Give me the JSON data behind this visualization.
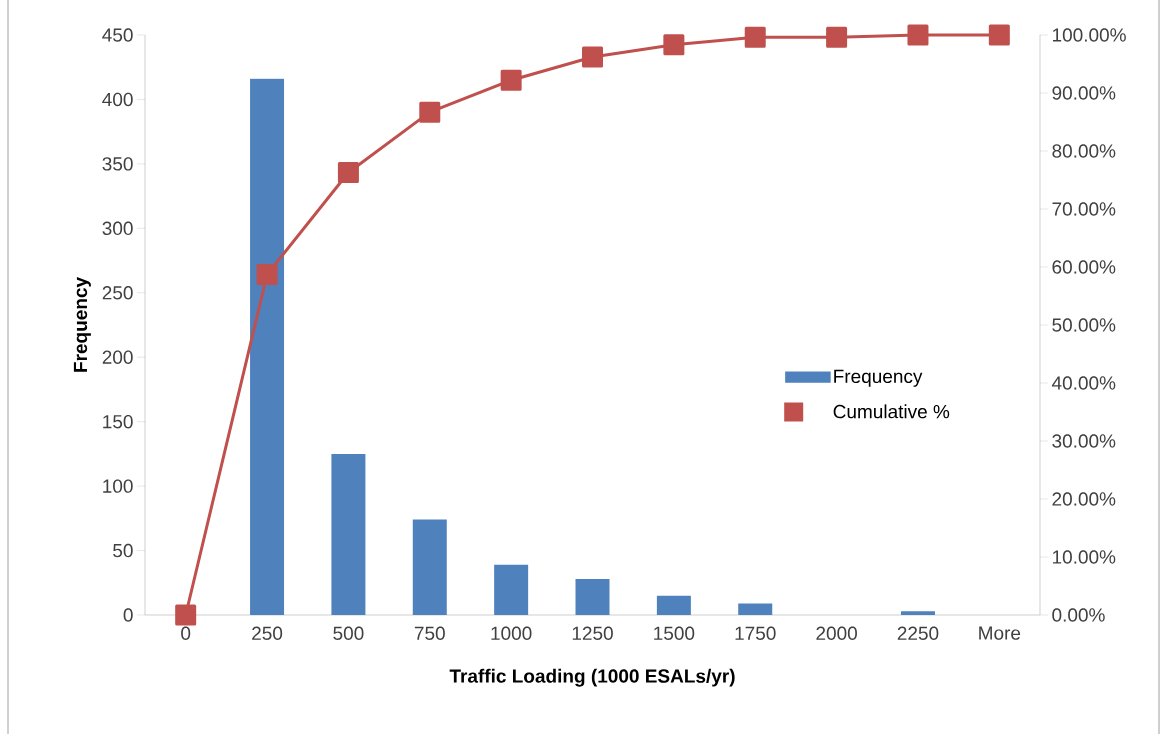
{
  "chart_data": {
    "type": "bar",
    "xlabel": "Traffic Loading (1000 ESALs/yr)",
    "ylabel": "Frequency",
    "categories": [
      "0",
      "250",
      "500",
      "750",
      "1000",
      "1250",
      "1500",
      "1750",
      "2000",
      "2250",
      "More"
    ],
    "series": [
      {
        "name": "Frequency",
        "color": "#4f81bd",
        "values": [
          0,
          416,
          125,
          74,
          39,
          28,
          15,
          9,
          0,
          3,
          0
        ]
      },
      {
        "name": "Cumulative %",
        "type": "line",
        "axis": "y2",
        "color": "#c0504d",
        "marker": "square",
        "line_style": "solid",
        "values": [
          0,
          58.7,
          76.3,
          86.7,
          92.2,
          96.2,
          98.3,
          99.6,
          99.6,
          100,
          100
        ]
      }
    ],
    "ylim": [
      0,
      450
    ],
    "yticks": [
      0,
      50,
      100,
      150,
      200,
      250,
      300,
      350,
      400,
      450
    ],
    "y2lim": [
      0,
      100
    ],
    "y2ticks": [
      {
        "value": 0,
        "label": "0.00%"
      },
      {
        "value": 10,
        "label": "10.00%"
      },
      {
        "value": 20,
        "label": "20.00%"
      },
      {
        "value": 30,
        "label": "30.00%"
      },
      {
        "value": 40,
        "label": "40.00%"
      },
      {
        "value": 50,
        "label": "50.00%"
      },
      {
        "value": 60,
        "label": "60.00%"
      },
      {
        "value": 70,
        "label": "70.00%"
      },
      {
        "value": 80,
        "label": "80.00%"
      },
      {
        "value": 90,
        "label": "90.00%"
      },
      {
        "value": 100,
        "label": "100.00%"
      }
    ],
    "legend": "right",
    "grid": false
  }
}
